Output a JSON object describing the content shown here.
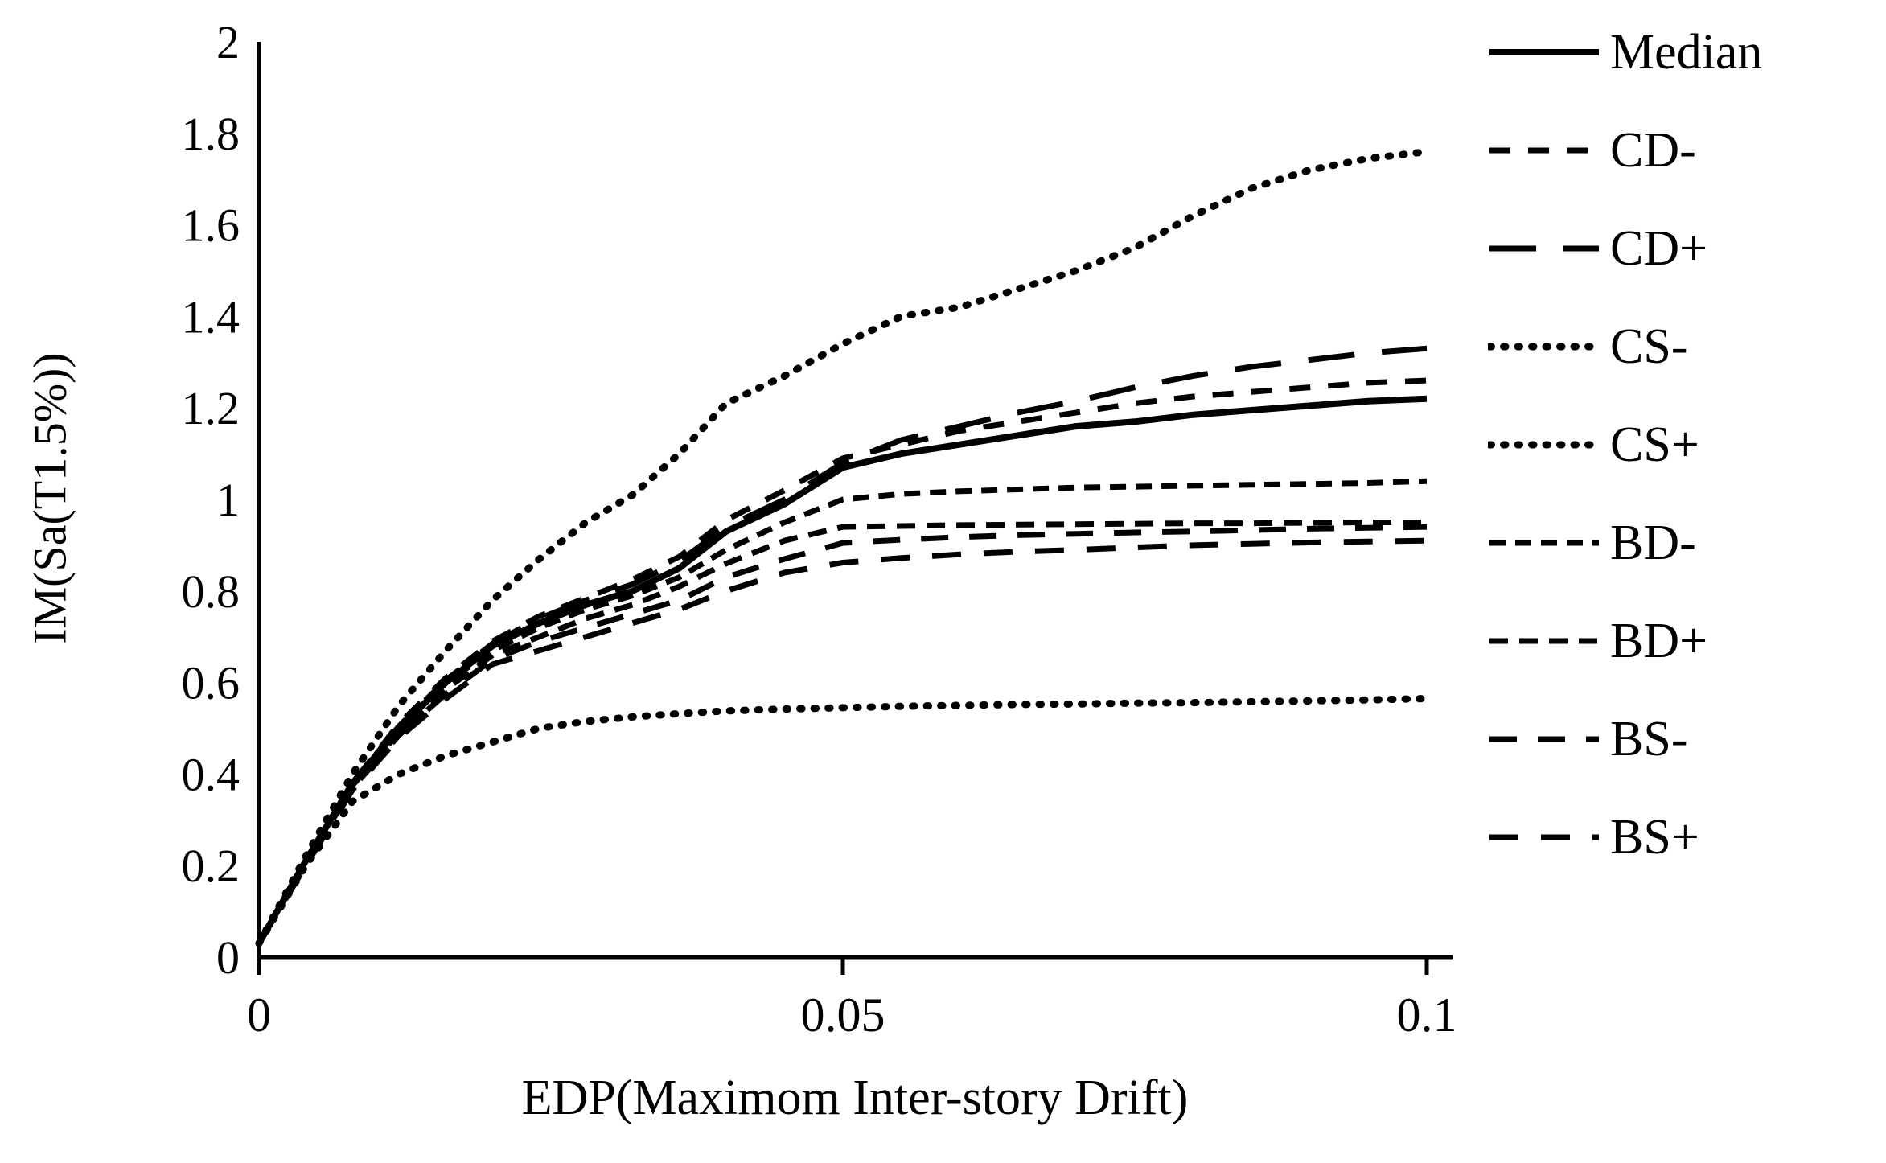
{
  "figure": {
    "background_color": "#ffffff",
    "ink_color": "#000000"
  },
  "chart_data": {
    "type": "line",
    "title": "",
    "xlabel": "EDP(Maximom Inter-story Drift)",
    "ylabel": "IM(Sa(T1.5%))",
    "xlim": [
      0,
      0.1
    ],
    "ylim": [
      0,
      2
    ],
    "x_ticks": [
      0,
      0.05,
      0.1
    ],
    "x_tick_labels": [
      "0",
      "0.05",
      "0.1"
    ],
    "y_ticks": [
      0,
      0.2,
      0.4,
      0.6,
      0.8,
      1,
      1.2,
      1.4,
      1.6,
      1.8,
      2
    ],
    "y_tick_labels": [
      "0",
      "0.2",
      "0.4",
      "0.6",
      "0.8",
      "1",
      "1.2",
      "1.4",
      "1.6",
      "1.8",
      "2"
    ],
    "grid": false,
    "legend_position": "right",
    "x": [
      0,
      0.004,
      0.008,
      0.012,
      0.016,
      0.02,
      0.024,
      0.028,
      0.032,
      0.036,
      0.04,
      0.045,
      0.05,
      0.055,
      0.06,
      0.065,
      0.07,
      0.075,
      0.08,
      0.085,
      0.09,
      0.095,
      0.1
    ],
    "series": [
      {
        "name": "Median",
        "line_style": "solid",
        "dash": null,
        "width": 8,
        "values": [
          0.03,
          0.21,
          0.38,
          0.5,
          0.6,
          0.68,
          0.73,
          0.77,
          0.8,
          0.85,
          0.93,
          0.99,
          1.07,
          1.1,
          1.12,
          1.14,
          1.16,
          1.17,
          1.185,
          1.195,
          1.205,
          1.215,
          1.22
        ]
      },
      {
        "name": "CD-",
        "line_style": "dashed-medium",
        "dash": "26 22",
        "width": 7,
        "values": [
          0.03,
          0.21,
          0.38,
          0.51,
          0.61,
          0.69,
          0.745,
          0.785,
          0.825,
          0.875,
          0.955,
          1.02,
          1.09,
          1.12,
          1.15,
          1.17,
          1.19,
          1.21,
          1.225,
          1.235,
          1.245,
          1.255,
          1.26
        ]
      },
      {
        "name": "CD+",
        "line_style": "dashed-long",
        "dash": "58 34",
        "width": 7,
        "values": [
          0.03,
          0.21,
          0.38,
          0.505,
          0.605,
          0.685,
          0.74,
          0.78,
          0.815,
          0.865,
          0.94,
          1.0,
          1.08,
          1.13,
          1.16,
          1.19,
          1.215,
          1.245,
          1.27,
          1.29,
          1.305,
          1.32,
          1.33
        ]
      },
      {
        "name": "CS-",
        "line_style": "dotted",
        "dash": "2.5 15",
        "width": 9,
        "values": [
          0.03,
          0.22,
          0.4,
          0.55,
          0.67,
          0.78,
          0.87,
          0.95,
          1.01,
          1.1,
          1.21,
          1.27,
          1.34,
          1.4,
          1.42,
          1.46,
          1.5,
          1.55,
          1.62,
          1.68,
          1.72,
          1.745,
          1.76
        ]
      },
      {
        "name": "CS+",
        "line_style": "dotted",
        "dash": "2.5 15",
        "width": 9,
        "values": [
          0.03,
          0.2,
          0.34,
          0.4,
          0.44,
          0.47,
          0.5,
          0.515,
          0.525,
          0.532,
          0.538,
          0.542,
          0.545,
          0.548,
          0.55,
          0.552,
          0.553,
          0.555,
          0.556,
          0.558,
          0.56,
          0.562,
          0.565
        ]
      },
      {
        "name": "BD-",
        "line_style": "dashed-short",
        "dash": "20 12",
        "width": 7,
        "values": [
          0.03,
          0.21,
          0.38,
          0.5,
          0.6,
          0.67,
          0.72,
          0.76,
          0.79,
          0.83,
          0.89,
          0.95,
          1.0,
          1.012,
          1.018,
          1.022,
          1.026,
          1.028,
          1.03,
          1.032,
          1.034,
          1.036,
          1.04
        ]
      },
      {
        "name": "BD+",
        "line_style": "dashed-short",
        "dash": "23 14",
        "width": 7,
        "values": [
          0.03,
          0.21,
          0.375,
          0.49,
          0.585,
          0.66,
          0.7,
          0.74,
          0.77,
          0.81,
          0.86,
          0.91,
          0.94,
          0.942,
          0.944,
          0.945,
          0.946,
          0.947,
          0.948,
          0.948,
          0.949,
          0.95,
          0.95
        ]
      },
      {
        "name": "BS-",
        "line_style": "dashed-medium",
        "dash": "34 26",
        "width": 7,
        "values": [
          0.03,
          0.205,
          0.37,
          0.485,
          0.575,
          0.65,
          0.69,
          0.72,
          0.75,
          0.78,
          0.83,
          0.87,
          0.905,
          0.912,
          0.918,
          0.922,
          0.925,
          0.928,
          0.93,
          0.933,
          0.936,
          0.938,
          0.94
        ]
      },
      {
        "name": "BS+",
        "line_style": "dashed-medium",
        "dash": "36 28",
        "width": 7,
        "values": [
          0.03,
          0.2,
          0.365,
          0.48,
          0.565,
          0.64,
          0.67,
          0.7,
          0.73,
          0.76,
          0.8,
          0.84,
          0.862,
          0.872,
          0.88,
          0.886,
          0.89,
          0.895,
          0.9,
          0.903,
          0.906,
          0.908,
          0.91
        ]
      }
    ]
  }
}
